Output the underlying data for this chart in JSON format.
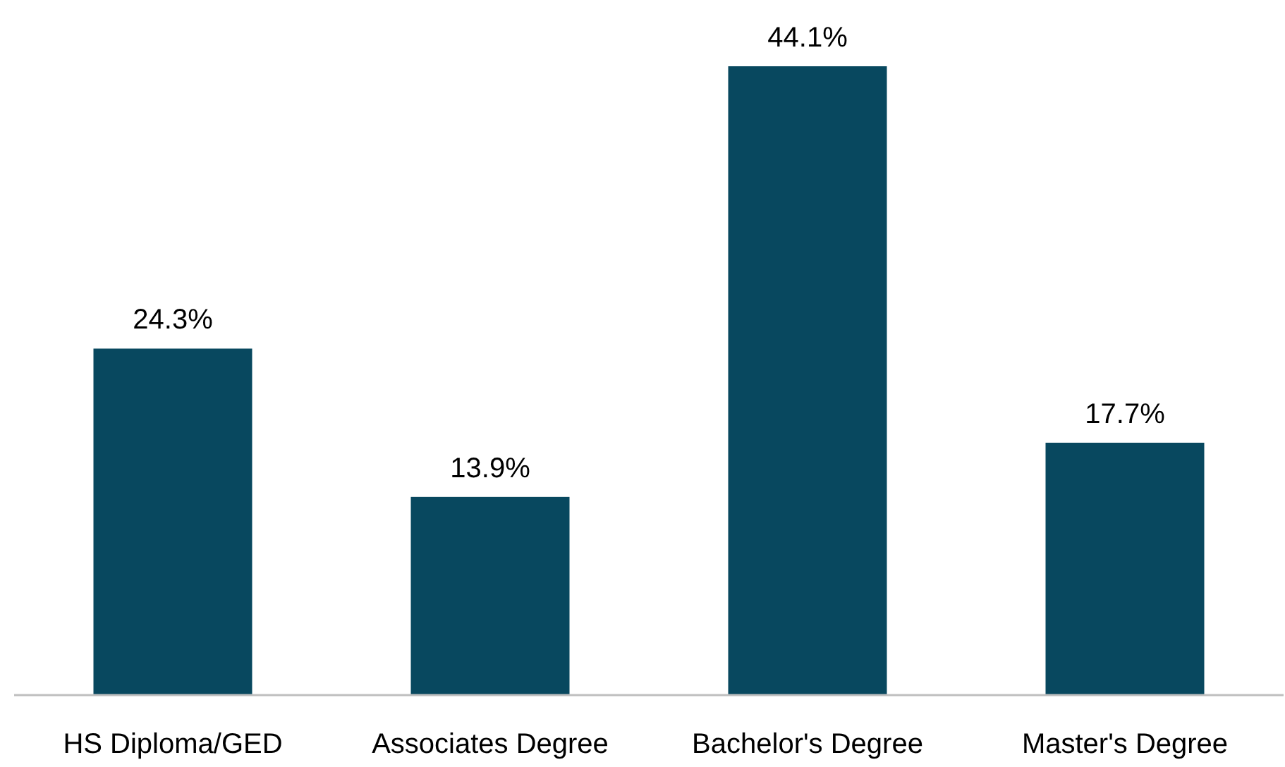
{
  "chart_data": {
    "type": "bar",
    "categories": [
      "HS Diploma/GED",
      "Associates Degree",
      "Bachelor's Degree",
      "Master's Degree"
    ],
    "values": [
      24.3,
      13.9,
      44.1,
      17.7
    ],
    "value_labels": [
      "24.3%",
      "13.9%",
      "44.1%",
      "17.7%"
    ],
    "color": "#08485f"
  }
}
